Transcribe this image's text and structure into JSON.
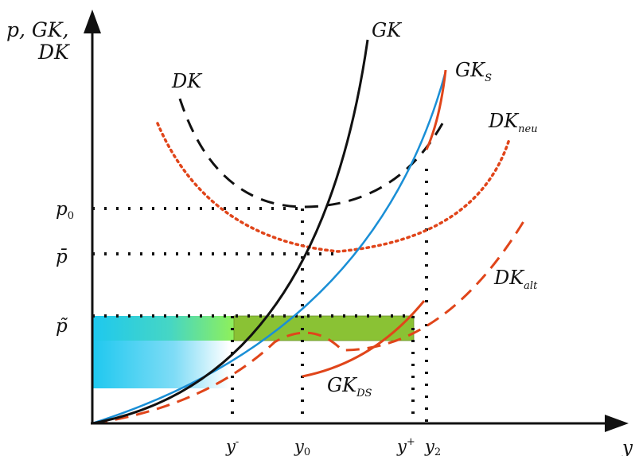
{
  "chart_data": {
    "type": "line",
    "title": "",
    "ylabel": [
      "p, GK,",
      "DK"
    ],
    "xlabel": "y",
    "grid": false,
    "x_tick_labels": [
      {
        "base": "y",
        "sup": "-"
      },
      {
        "base": "y",
        "sub": "0"
      },
      {
        "base": "y",
        "sup": "+"
      },
      {
        "base": "y",
        "sub": "2"
      }
    ],
    "y_tick_labels": [
      {
        "base": "p",
        "sub": "0"
      },
      {
        "base": "p̄"
      },
      {
        "base": "p̃"
      }
    ],
    "series": [
      {
        "name": "GK",
        "base": "GK",
        "color": "#111111",
        "style": "solid"
      },
      {
        "name": "GK_S",
        "base": "GK",
        "sub": "S",
        "color": "#1a8fd6",
        "style": "solid"
      },
      {
        "name": "DK",
        "base": "DK",
        "color": "#111111",
        "style": "dashed"
      },
      {
        "name": "DK_neu",
        "base": "DK",
        "sub": "neu",
        "color": "#e0451a",
        "style": "dotted"
      },
      {
        "name": "DK_alt",
        "base": "DK",
        "sub": "alt",
        "color": "#e0451a",
        "style": "dashed"
      },
      {
        "name": "GK_DS",
        "base": "GK",
        "sub": "DS",
        "color": "#e0451a",
        "style": "solid"
      }
    ],
    "colors": {
      "axis": "#111111",
      "gk": "#111111",
      "gks": "#1a8fd6",
      "red": "#e0451a",
      "green": "#8ac234",
      "cyan": "#1ec8ef"
    }
  }
}
